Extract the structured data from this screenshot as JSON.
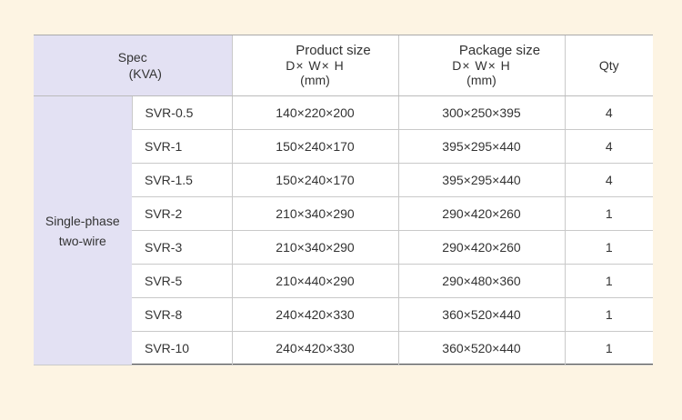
{
  "header": {
    "spec_line1": "Spec",
    "spec_line2": "(KVA)",
    "product_size": {
      "title": "Product size",
      "dims": "D× W× H",
      "unit": "(mm)"
    },
    "package_size": {
      "title": "Package size",
      "dims": "D× W× H",
      "unit": "(mm)"
    },
    "qty": "Qty"
  },
  "group": {
    "line1": "Single-phase",
    "line2": "two-wire"
  },
  "rows": [
    {
      "model": "SVR-0.5",
      "product": "140×220×200",
      "package": "300×250×395",
      "qty": "4"
    },
    {
      "model": "SVR-1",
      "product": "150×240×170",
      "package": "395×295×440",
      "qty": "4"
    },
    {
      "model": "SVR-1.5",
      "product": "150×240×170",
      "package": "395×295×440",
      "qty": "4"
    },
    {
      "model": "SVR-2",
      "product": "210×340×290",
      "package": "290×420×260",
      "qty": "1"
    },
    {
      "model": "SVR-3",
      "product": "210×340×290",
      "package": "290×420×260",
      "qty": "1"
    },
    {
      "model": "SVR-5",
      "product": "210×440×290",
      "package": "290×480×360",
      "qty": "1"
    },
    {
      "model": "SVR-8",
      "product": "240×420×330",
      "package": "360×520×440",
      "qty": "1"
    },
    {
      "model": "SVR-10",
      "product": "240×420×330",
      "package": "360×520×440",
      "qty": "1"
    }
  ]
}
